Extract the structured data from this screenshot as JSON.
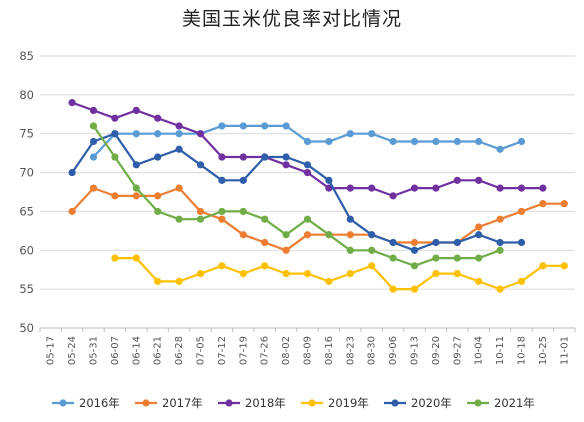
{
  "chart_data": {
    "type": "line",
    "title": "美国玉米优良率对比情况",
    "xlabel": "",
    "ylabel": "",
    "ylim": [
      50,
      85
    ],
    "yticks": [
      50,
      55,
      60,
      65,
      70,
      75,
      80,
      85
    ],
    "grid": true,
    "legend_position": "bottom",
    "categories": [
      "05-17",
      "05-24",
      "05-31",
      "06-07",
      "06-14",
      "06-21",
      "06-28",
      "07-05",
      "07-12",
      "07-19",
      "07-26",
      "08-02",
      "08-09",
      "08-16",
      "08-23",
      "08-30",
      "09-06",
      "09-13",
      "09-20",
      "09-27",
      "10-04",
      "10-11",
      "10-18",
      "10-25",
      "11-01"
    ],
    "series": [
      {
        "name": "2016年",
        "color": "#5B9BD5",
        "values": [
          null,
          null,
          72,
          75,
          75,
          75,
          75,
          75,
          76,
          76,
          76,
          76,
          74,
          74,
          75,
          75,
          74,
          74,
          74,
          74,
          74,
          73,
          74,
          null,
          null
        ]
      },
      {
        "name": "2017年",
        "color": "#ED7D31",
        "values": [
          null,
          65,
          68,
          67,
          67,
          67,
          68,
          65,
          64,
          62,
          61,
          60,
          62,
          62,
          62,
          62,
          61,
          61,
          61,
          61,
          63,
          64,
          65,
          66,
          66
        ]
      },
      {
        "name": "2018年",
        "color": "#7030A0",
        "values": [
          null,
          79,
          78,
          77,
          78,
          77,
          76,
          75,
          72,
          72,
          72,
          71,
          70,
          68,
          68,
          68,
          67,
          68,
          68,
          69,
          69,
          68,
          68,
          68,
          null
        ]
      },
      {
        "name": "2019年",
        "color": "#FFC000",
        "values": [
          null,
          null,
          null,
          59,
          59,
          56,
          56,
          57,
          58,
          57,
          58,
          57,
          57,
          56,
          57,
          58,
          55,
          55,
          57,
          57,
          56,
          55,
          56,
          58,
          58
        ]
      },
      {
        "name": "2020年",
        "color": "#2E5EAA",
        "values": [
          null,
          70,
          74,
          75,
          71,
          72,
          73,
          71,
          69,
          69,
          72,
          72,
          71,
          69,
          64,
          62,
          61,
          60,
          61,
          61,
          62,
          61,
          61,
          null,
          null
        ]
      },
      {
        "name": "2021年",
        "color": "#70AD47",
        "values": [
          null,
          null,
          76,
          72,
          68,
          65,
          64,
          64,
          65,
          65,
          64,
          62,
          64,
          62,
          60,
          60,
          59,
          58,
          59,
          59,
          59,
          60,
          null,
          null,
          null
        ]
      }
    ]
  }
}
